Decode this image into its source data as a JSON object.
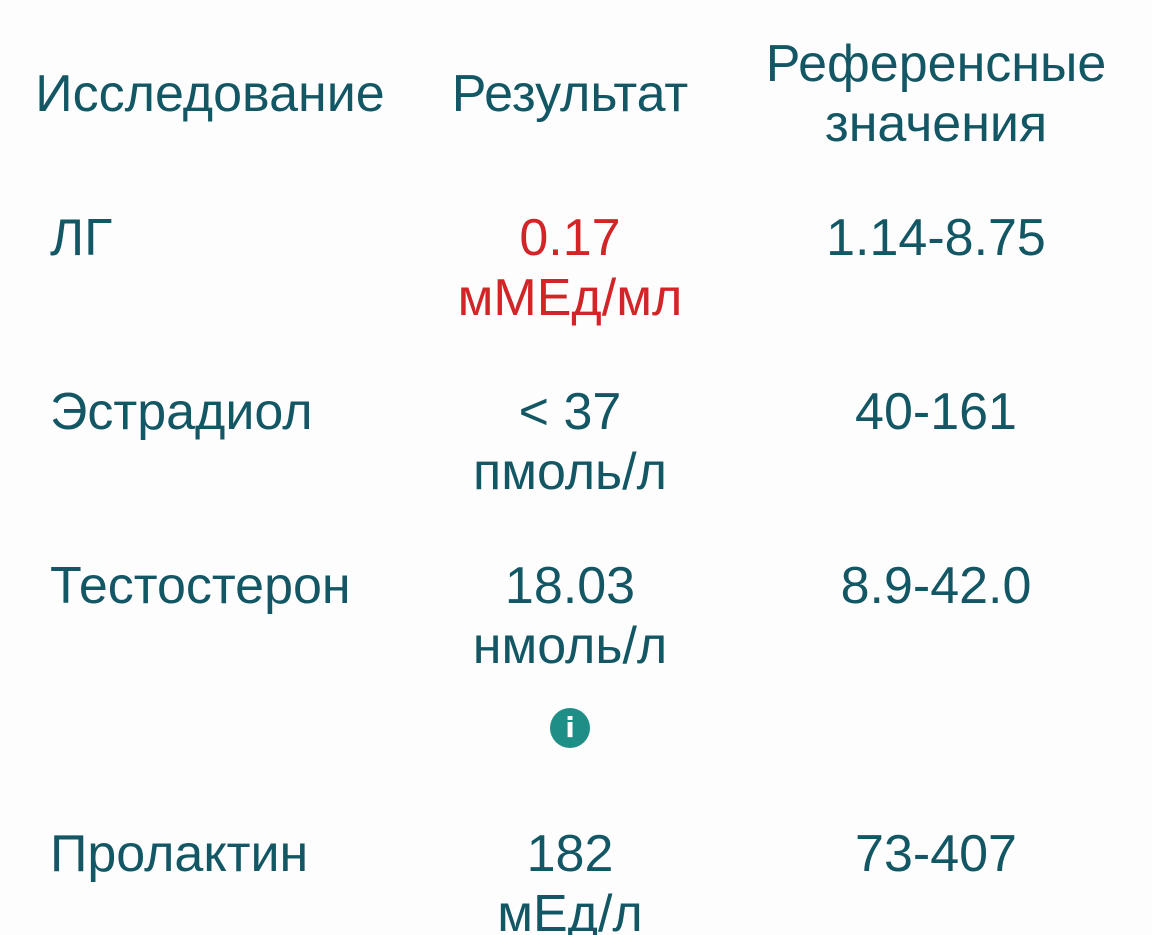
{
  "table": {
    "columns": [
      {
        "label": "Исследование"
      },
      {
        "label": "Результат"
      },
      {
        "label": "Референсные значения"
      }
    ],
    "rows": [
      {
        "test": "ЛГ",
        "result_value": "0.17",
        "result_unit": "мМЕд/мл",
        "reference": "1.14-8.75",
        "abnormal": true,
        "has_info": false
      },
      {
        "test": "Эстрадиол",
        "result_value": "< 37",
        "result_unit": "пмоль/л",
        "reference": "40-161",
        "abnormal": false,
        "has_info": false
      },
      {
        "test": "Тестостерон",
        "result_value": "18.03",
        "result_unit": "нмоль/л",
        "reference": "8.9-42.0",
        "abnormal": false,
        "has_info": true
      },
      {
        "test": "Пролактин",
        "result_value": "182",
        "result_unit": "мЕд/л",
        "reference": "73-407",
        "abnormal": false,
        "has_info": false
      }
    ],
    "info_icon_glyph": "i"
  },
  "colors": {
    "background": "#fdfdfd",
    "header_text": "#0e4a56",
    "body_text": "#135765",
    "abnormal_result": "#d22528",
    "info_icon_bg": "#1f8e87",
    "info_icon_glyph": "#ffffff"
  }
}
